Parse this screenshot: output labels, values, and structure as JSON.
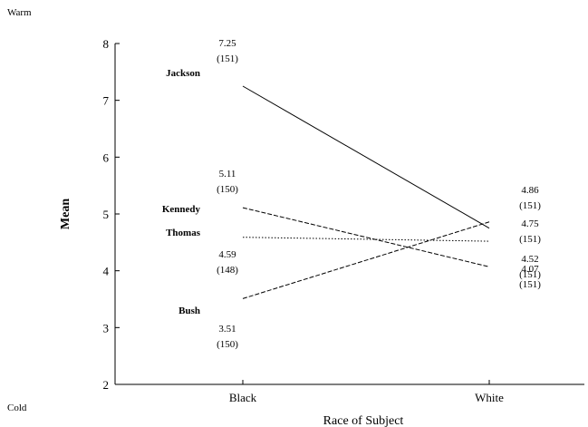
{
  "chart_data": {
    "type": "line",
    "xlabel": "Race of Subject",
    "ylabel": "Mean",
    "categories": [
      "Black",
      "White"
    ],
    "ylim": [
      2,
      8
    ],
    "yticks": [
      "2",
      "3",
      "4",
      "5",
      "6",
      "7",
      "8"
    ],
    "scale_top_label": "Warm",
    "scale_bottom_label": "Cold",
    "grid": false,
    "legend": "none",
    "series": [
      {
        "name": "Jackson",
        "values": [
          7.25,
          4.75
        ],
        "value_labels": [
          "7.25",
          "4.75"
        ],
        "n_labels": [
          "(151)",
          "(151)"
        ],
        "line_style": "solid"
      },
      {
        "name": "Kennedy",
        "values": [
          5.11,
          4.07
        ],
        "value_labels": [
          "5.11",
          "4.07"
        ],
        "n_labels": [
          "(150)",
          "(151)"
        ],
        "line_style": "dashed"
      },
      {
        "name": "Thomas",
        "values": [
          4.59,
          4.52
        ],
        "value_labels": [
          "4.59",
          "4.52"
        ],
        "n_labels": [
          "(148)",
          "(151)"
        ],
        "line_style": "dotted"
      },
      {
        "name": "Bush",
        "values": [
          3.51,
          4.86
        ],
        "value_labels": [
          "3.51",
          "4.86"
        ],
        "n_labels": [
          "(150)",
          "(151)"
        ],
        "line_style": "dashed"
      }
    ]
  }
}
